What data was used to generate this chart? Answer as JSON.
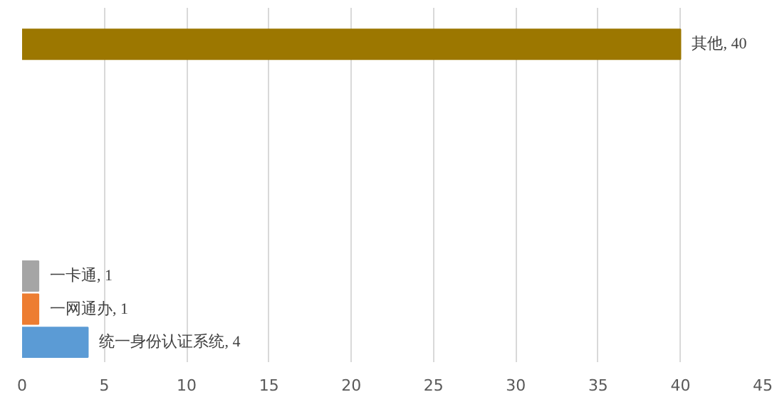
{
  "chart_data": {
    "type": "bar",
    "orientation": "horizontal",
    "categories": [
      null,
      null,
      null,
      null,
      null,
      null,
      null,
      null,
      null,
      null
    ],
    "values": [
      40,
      null,
      null,
      null,
      null,
      null,
      null,
      1,
      1,
      4
    ],
    "colors": [
      "#9c7700",
      null,
      null,
      null,
      null,
      null,
      null,
      "#a5a5a5",
      "#ed7d31",
      "#5b9bd5"
    ],
    "value_labels": [
      "其他, 40",
      null,
      null,
      null,
      null,
      null,
      null,
      "一卡通, 1",
      "一网通办, 1",
      "统一身份认证系统, 4"
    ],
    "xlim": [
      0,
      45
    ],
    "xticks": [
      0,
      5,
      10,
      15,
      20,
      25,
      30,
      35,
      40,
      45
    ],
    "grid": "x",
    "tick_labels": "x"
  }
}
